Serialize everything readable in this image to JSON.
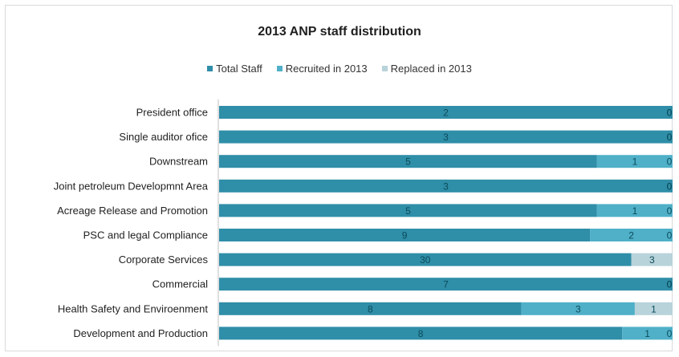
{
  "chart_data": {
    "type": "bar",
    "orientation": "horizontal",
    "stacked": "percent",
    "title": "2013 ANP staff distribution",
    "legend_position": "top",
    "grid": false,
    "categories": [
      "President office",
      "Single auditor ofice",
      "Downstream",
      "Joint petroleum Developmnt Area",
      "Acreage Release and Promotion",
      "PSC and legal Compliance",
      "Corporate Services",
      "Commercial",
      "Health Safety and Enviroenment",
      "Development and Production"
    ],
    "series": [
      {
        "name": "Total  Staff",
        "values": [
          2,
          3,
          5,
          3,
          5,
          9,
          30,
          7,
          8,
          8
        ],
        "color": "#2f8ea8"
      },
      {
        "name": "Recruited in 2013",
        "values": [
          0,
          0,
          1,
          0,
          1,
          2,
          0,
          0,
          3,
          1
        ],
        "color": "#4fb0c8"
      },
      {
        "name": "Replaced in 2013",
        "values": [
          0,
          0,
          0,
          0,
          0,
          0,
          3,
          0,
          1,
          0
        ],
        "color": "#b8d3da"
      }
    ]
  }
}
